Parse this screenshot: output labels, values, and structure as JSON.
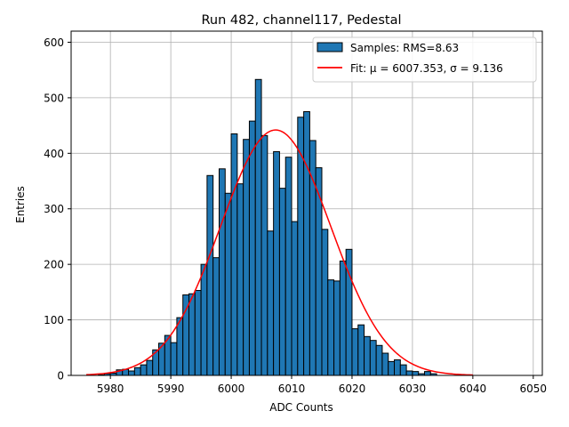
{
  "chart_data": {
    "type": "bar",
    "title": "Run 482, channel117, Pedestal",
    "xlabel": "ADC Counts",
    "ylabel": "Entries",
    "xlim": [
      5973.5,
      6051.5
    ],
    "ylim": [
      0,
      620
    ],
    "grid": true,
    "legend_position": "top-right",
    "xticks": [
      5980,
      5990,
      6000,
      6010,
      6020,
      6030,
      6040,
      6050
    ],
    "yticks": [
      0,
      100,
      200,
      300,
      400,
      500,
      600
    ],
    "histogram": {
      "name": "Samples: RMS=8.63",
      "color": "#1f77b4",
      "bin_start": 5978,
      "bin_width": 1,
      "counts": [
        1,
        3,
        4,
        10,
        11,
        8,
        14,
        19,
        27,
        46,
        58,
        72,
        59,
        104,
        145,
        147,
        153,
        200,
        360,
        212,
        372,
        328,
        435,
        345,
        425,
        458,
        533,
        432,
        260,
        403,
        337,
        393,
        277,
        465,
        475,
        423,
        374,
        263,
        172,
        170,
        206,
        227,
        84,
        91,
        70,
        63,
        54,
        40,
        25,
        28,
        19,
        8,
        7,
        3,
        7,
        3
      ]
    },
    "fit": {
      "name": "Fit: μ = 6007.353, σ = 9.136",
      "color": "#ff0000",
      "mu": 6007.353,
      "sigma": 9.136,
      "amplitude": 442,
      "x_range": [
        5976,
        6040
      ]
    }
  }
}
